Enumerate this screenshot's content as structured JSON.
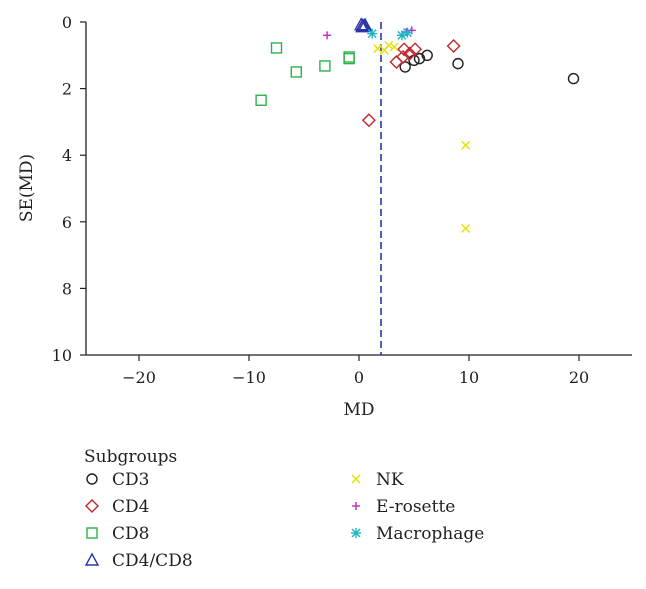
{
  "chart_data": {
    "type": "scatter",
    "title": "",
    "xlabel": "MD",
    "ylabel": "SE(MD)",
    "xlim": [
      -25,
      25
    ],
    "ylim": [
      0,
      10
    ],
    "y_inverted": true,
    "x_ticks": [
      "−20",
      "−10",
      "0",
      "10",
      "20"
    ],
    "x_tick_values": [
      -20,
      -10,
      0,
      10,
      20
    ],
    "y_ticks": [
      "0",
      "2",
      "4",
      "6",
      "8",
      "10"
    ],
    "y_tick_values": [
      0,
      2,
      4,
      6,
      8,
      10
    ],
    "reference_line": {
      "x": 2.0,
      "style": "dashed",
      "color": "#2b35a8"
    },
    "grid": false,
    "legend": {
      "title": "Subgroups",
      "placement": "bottom"
    },
    "series": [
      {
        "name": "CD3",
        "marker": "circle",
        "color": "#231f20",
        "points": [
          [
            4.2,
            1.35
          ],
          [
            5.0,
            1.15
          ],
          [
            5.5,
            1.1
          ],
          [
            6.2,
            1.0
          ],
          [
            9.0,
            1.25
          ],
          [
            19.5,
            1.7
          ]
        ]
      },
      {
        "name": "CD4",
        "marker": "diamond",
        "color": "#c0272d",
        "points": [
          [
            3.4,
            1.2
          ],
          [
            4.0,
            1.05
          ],
          [
            4.1,
            0.82
          ],
          [
            4.6,
            0.95
          ],
          [
            5.1,
            0.82
          ],
          [
            8.6,
            0.72
          ],
          [
            0.9,
            2.95
          ]
        ]
      },
      {
        "name": "CD8",
        "marker": "square",
        "color": "#2db34a",
        "points": [
          [
            -7.5,
            0.78
          ],
          [
            -5.7,
            1.5
          ],
          [
            -3.1,
            1.32
          ],
          [
            -0.9,
            1.05
          ],
          [
            -0.9,
            1.1
          ],
          [
            -8.9,
            2.35
          ]
        ]
      },
      {
        "name": "CD4/CD8",
        "marker": "triangle",
        "color": "#2b35a8",
        "points": [
          [
            0.2,
            0.08
          ],
          [
            0.35,
            0.1
          ],
          [
            0.5,
            0.12
          ],
          [
            0.3,
            0.14
          ],
          [
            0.55,
            0.09
          ]
        ]
      },
      {
        "name": "NK",
        "marker": "x",
        "color": "#e5e000",
        "points": [
          [
            1.7,
            0.8
          ],
          [
            2.3,
            0.85
          ],
          [
            2.7,
            0.7
          ],
          [
            3.2,
            0.75
          ],
          [
            9.7,
            3.7
          ],
          [
            9.7,
            6.2
          ]
        ]
      },
      {
        "name": "E-rosette",
        "marker": "plus",
        "color": "#c026c8",
        "points": [
          [
            -2.9,
            0.4
          ],
          [
            4.3,
            0.3
          ],
          [
            4.8,
            0.25
          ]
        ]
      },
      {
        "name": "Macrophage",
        "marker": "asterisk",
        "color": "#1fb5c6",
        "points": [
          [
            1.2,
            0.35
          ],
          [
            3.9,
            0.4
          ],
          [
            4.4,
            0.32
          ]
        ]
      }
    ]
  }
}
